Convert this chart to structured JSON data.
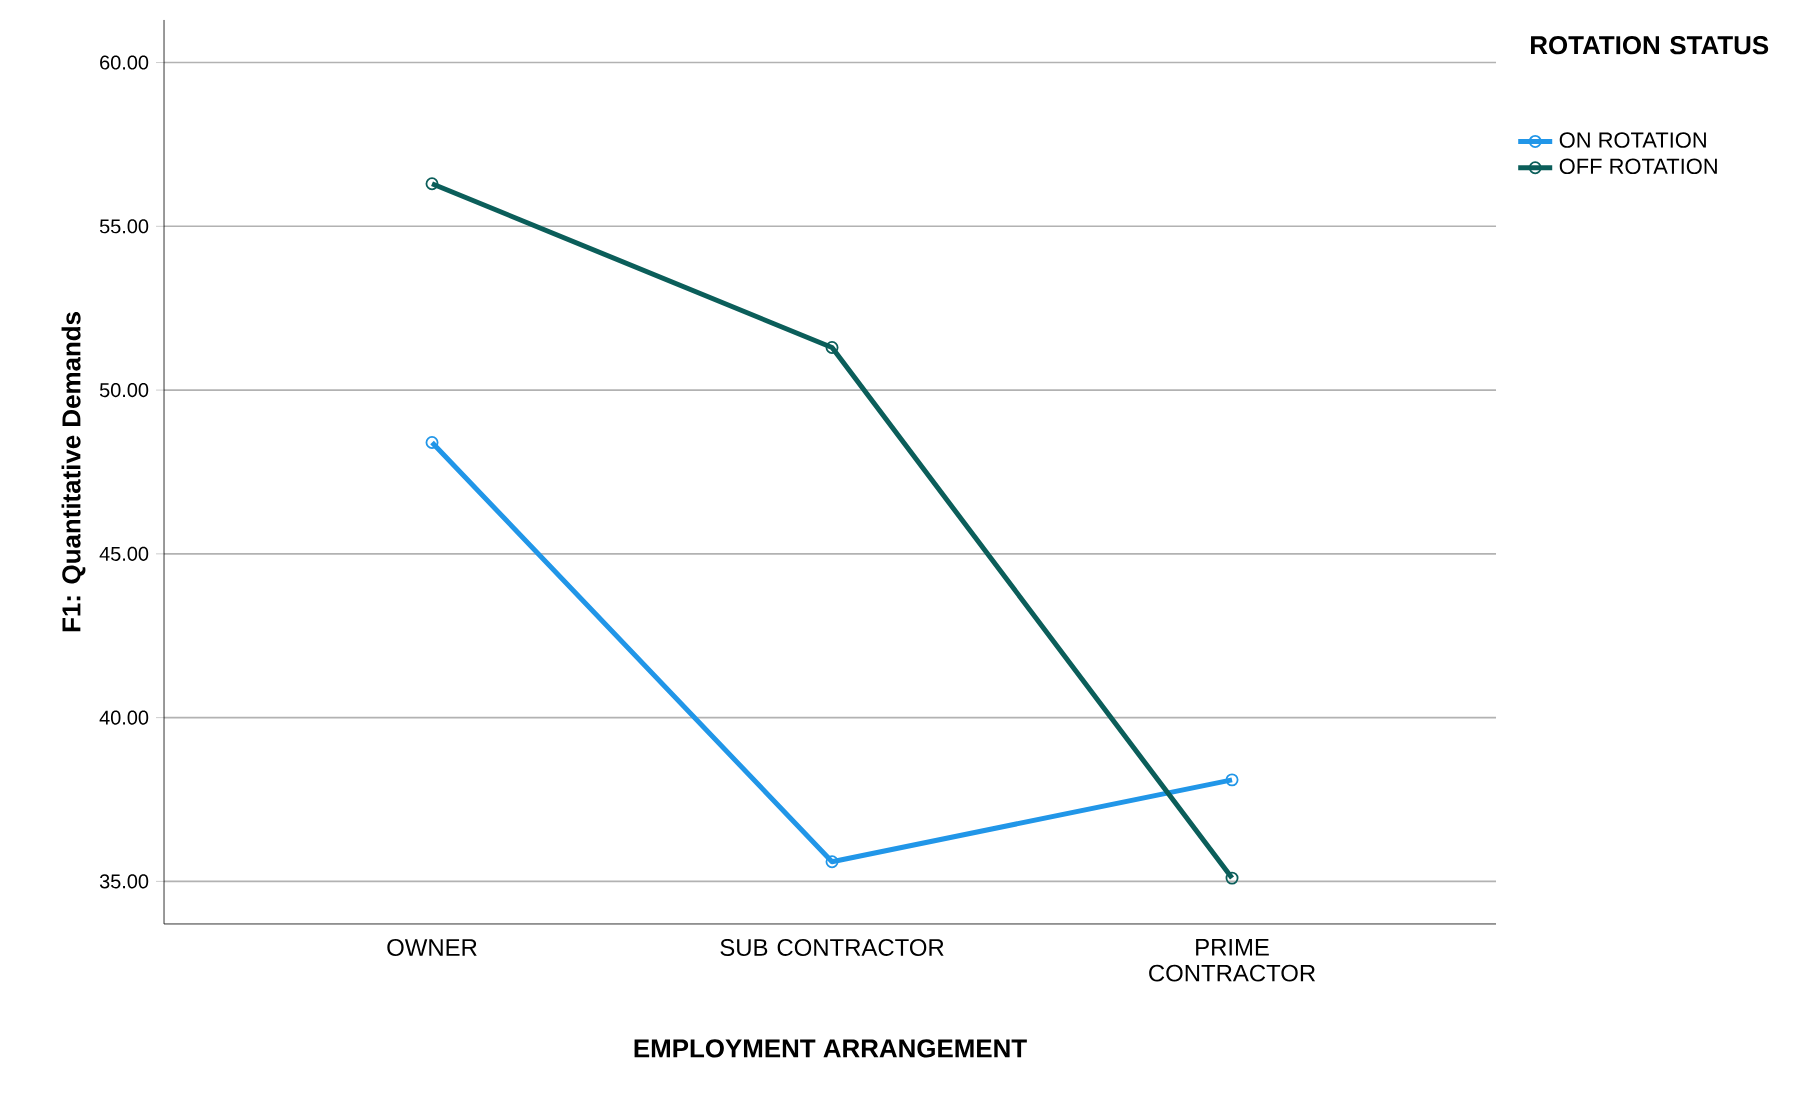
{
  "chart_data": {
    "type": "line",
    "xlabel": "EMPLOYMENT ARRANGEMENT",
    "ylabel": "F1: Quantitative Demands",
    "legend_title": "ROTATION STATUS",
    "categories": [
      "OWNER",
      "SUB CONTRACTOR",
      "PRIME CONTRACTOR"
    ],
    "series": [
      {
        "name": "ON ROTATION",
        "color": "#2196e8",
        "values": [
          48.4,
          35.6,
          38.1
        ]
      },
      {
        "name": "OFF ROTATION",
        "color": "#0b5e5a",
        "values": [
          56.3,
          51.3,
          35.1
        ]
      }
    ],
    "ylim": [
      33.7,
      61.3
    ],
    "yticks": [
      {
        "value": 35,
        "label": "35.00"
      },
      {
        "value": 40,
        "label": "40.00"
      },
      {
        "value": 45,
        "label": "45.00"
      },
      {
        "value": 50,
        "label": "50.00"
      },
      {
        "value": 55,
        "label": "55.00"
      },
      {
        "value": 60,
        "label": "60.00"
      }
    ],
    "grid": "y",
    "legend": "top right",
    "marker": "circle",
    "line_style": "solid"
  }
}
